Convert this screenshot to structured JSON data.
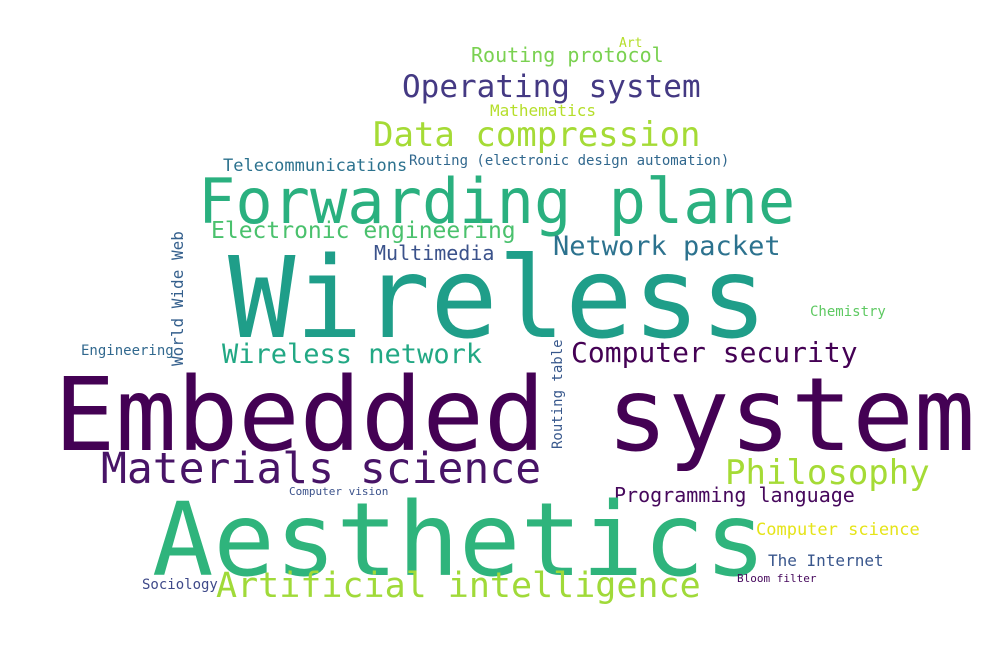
{
  "words": [
    {
      "id": "w1",
      "text": "Art",
      "color": "#b5de2b"
    },
    {
      "id": "w2",
      "text": "Routing protocol",
      "color": "#7ad151"
    },
    {
      "id": "w3",
      "text": "Operating system",
      "color": "#443983"
    },
    {
      "id": "w4",
      "text": "Mathematics",
      "color": "#b5de2b"
    },
    {
      "id": "w5",
      "text": "Data compression",
      "color": "#a5db36"
    },
    {
      "id": "w6",
      "text": "Telecommunications",
      "color": "#2c728e"
    },
    {
      "id": "w7",
      "text": "Routing (electronic design automation)",
      "color": "#31688e"
    },
    {
      "id": "w8",
      "text": "Forwarding plane",
      "color": "#2ab07f"
    },
    {
      "id": "w9",
      "text": "Electronic engineering",
      "color": "#4ac16d"
    },
    {
      "id": "w10",
      "text": "Network packet",
      "color": "#2c728e"
    },
    {
      "id": "w11",
      "text": "World Wide Web",
      "color": "#35608d"
    },
    {
      "id": "w12",
      "text": "Multimedia",
      "color": "#3b528b"
    },
    {
      "id": "w13",
      "text": "Wireless",
      "color": "#1f9e89"
    },
    {
      "id": "w14",
      "text": "Chemistry",
      "color": "#5ec962"
    },
    {
      "id": "w15",
      "text": "Engineering",
      "color": "#31688e"
    },
    {
      "id": "w16",
      "text": "Wireless network",
      "color": "#22a884"
    },
    {
      "id": "w17",
      "text": "Routing table",
      "color": "#38588c"
    },
    {
      "id": "w18",
      "text": "Computer security",
      "color": "#440154"
    },
    {
      "id": "w19",
      "text": "Embedded system",
      "color": "#440154"
    },
    {
      "id": "w20",
      "text": "Materials science",
      "color": "#481467"
    },
    {
      "id": "w21",
      "text": "Philosophy",
      "color": "#a5db36"
    },
    {
      "id": "w22",
      "text": "Computer vision",
      "color": "#3b528b"
    },
    {
      "id": "w23",
      "text": "Programming language",
      "color": "#46085c"
    },
    {
      "id": "w24",
      "text": "Aesthetics",
      "color": "#2fb47c"
    },
    {
      "id": "w25",
      "text": "Computer science",
      "color": "#e5e419"
    },
    {
      "id": "w26",
      "text": "The Internet",
      "color": "#39568c"
    },
    {
      "id": "w27",
      "text": "Sociology",
      "color": "#3e4989"
    },
    {
      "id": "w28",
      "text": "Artificial intelligence",
      "color": "#a0da39"
    },
    {
      "id": "w29",
      "text": "Bloom filter",
      "color": "#46085c"
    }
  ]
}
